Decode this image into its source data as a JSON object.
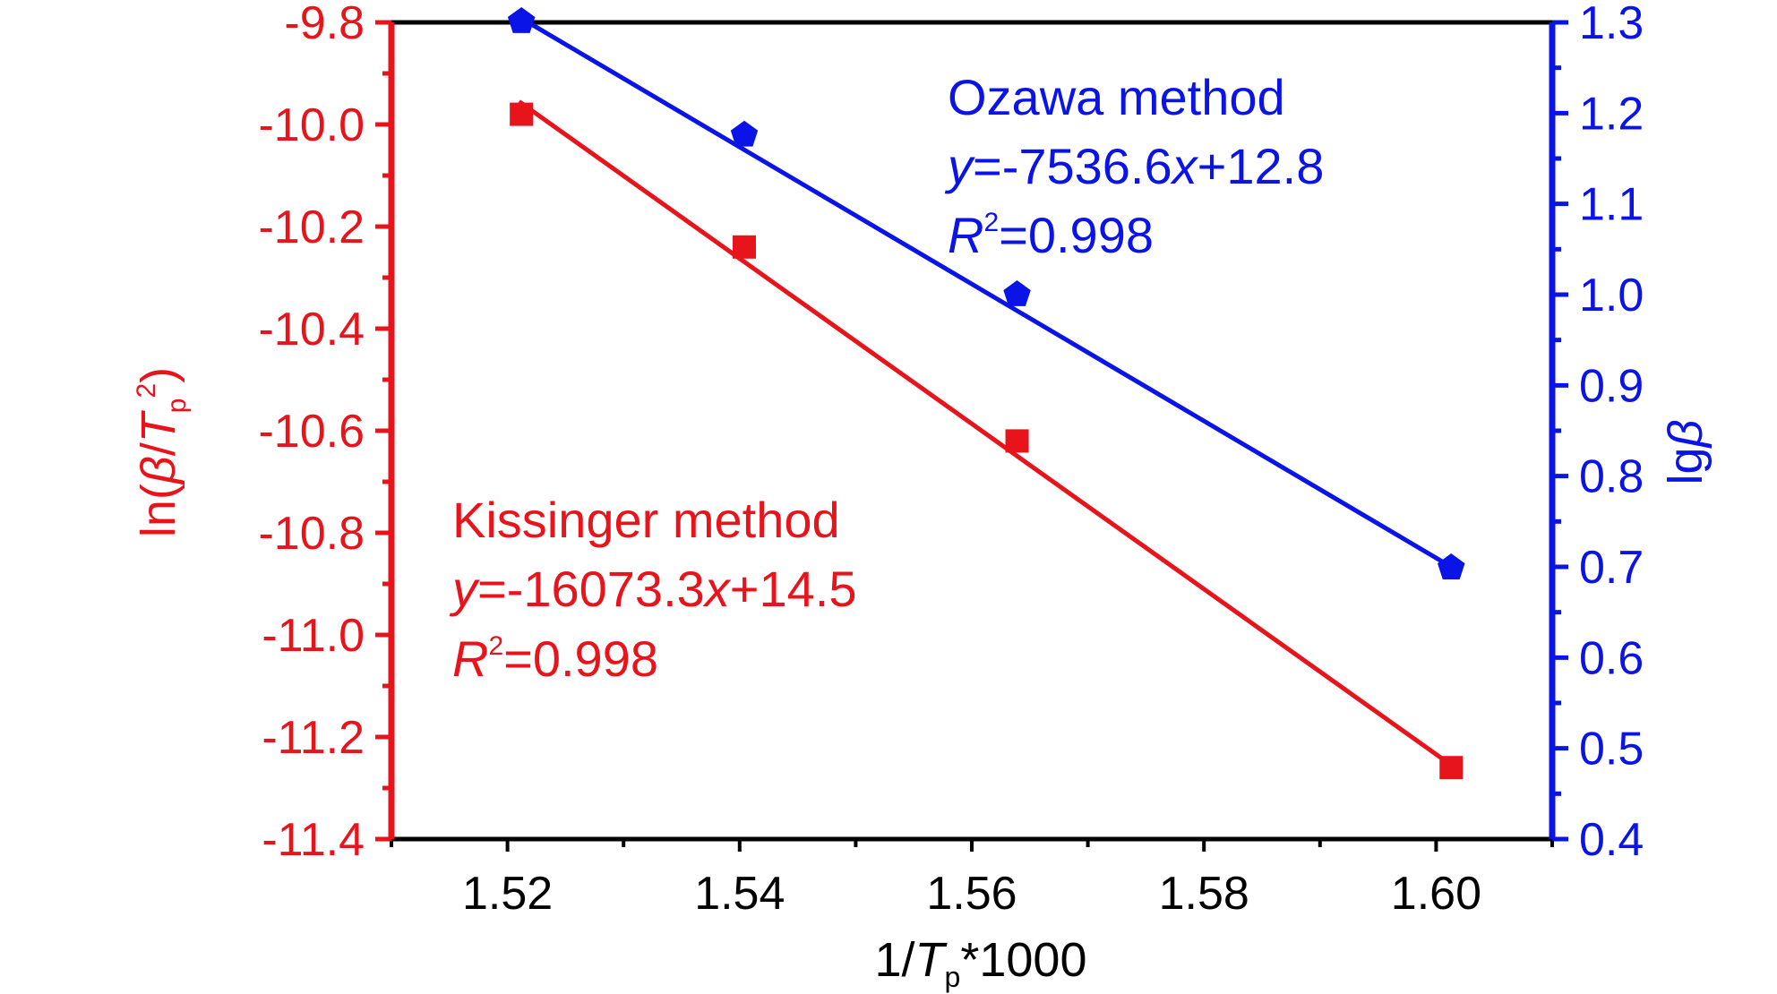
{
  "colors": {
    "left_axis": "#e8141c",
    "right_axis": "#0a14e6",
    "frame": "#000000"
  },
  "chart_data": {
    "type": "scatter",
    "x": {
      "label_parts": [
        "1/",
        "T",
        "p",
        "*1000"
      ],
      "range": [
        1.51,
        1.61
      ],
      "ticks": [
        "1.52",
        "1.54",
        "1.56",
        "1.58",
        "1.60"
      ],
      "minor_ticks": [
        1.51,
        1.53,
        1.55,
        1.57,
        1.59,
        1.61
      ]
    },
    "y_left": {
      "label_parts": [
        "ln(",
        "β",
        "/",
        "T",
        "p",
        "2",
        ")"
      ],
      "range": [
        -11.4,
        -9.8
      ],
      "ticks": [
        "-9.8",
        "-10.0",
        "-10.2",
        "-10.4",
        "-10.6",
        "-10.8",
        "-11.0",
        "-11.2",
        "-11.4"
      ]
    },
    "y_right": {
      "label_parts": [
        "lg",
        "β"
      ],
      "range": [
        0.4,
        1.3
      ],
      "ticks": [
        "0.4",
        "0.5",
        "0.6",
        "0.7",
        "0.8",
        "0.9",
        "1.0",
        "1.1",
        "1.2",
        "1.3"
      ]
    },
    "series": [
      {
        "name": "Kissinger method",
        "axis": "left",
        "marker": "square",
        "color": "#e8141c",
        "points": [
          {
            "x": 1.5212,
            "y": -9.98
          },
          {
            "x": 1.5404,
            "y": -10.24
          },
          {
            "x": 1.5639,
            "y": -10.62
          },
          {
            "x": 1.6013,
            "y": -11.26
          }
        ],
        "fit_line": {
          "x0": 1.521,
          "y0": -9.955,
          "x1": 1.6013,
          "y1": -11.255
        },
        "annotation": {
          "title": "Kissinger method",
          "eq_parts": [
            "y",
            "=-16073.3",
            "x",
            "+14.5"
          ],
          "r2_parts": [
            "R",
            "2",
            "=0.998"
          ]
        }
      },
      {
        "name": "Ozawa method",
        "axis": "right",
        "marker": "pentagon",
        "color": "#0a14e6",
        "points": [
          {
            "x": 1.5212,
            "y": 1.301
          },
          {
            "x": 1.5404,
            "y": 1.176
          },
          {
            "x": 1.5639,
            "y": 1.0
          },
          {
            "x": 1.6013,
            "y": 0.699
          }
        ],
        "fit_line": {
          "x0": 1.521,
          "y0": 1.306,
          "x1": 1.6013,
          "y1": 0.7
        },
        "annotation": {
          "title": "Ozawa method",
          "eq_parts": [
            "y",
            "=-7536.6",
            "x",
            "+12.8"
          ],
          "r2_parts": [
            "R",
            "2",
            "=0.998"
          ]
        }
      }
    ]
  }
}
